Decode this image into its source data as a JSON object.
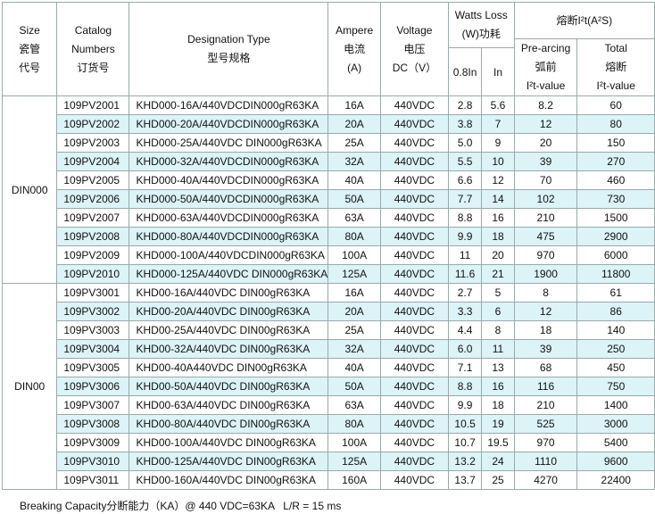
{
  "header": {
    "size": [
      "Size",
      "瓷管",
      "代号"
    ],
    "catalog": [
      "Catalog",
      "Numbers",
      "订货号"
    ],
    "designation": [
      "Designation Type",
      "型号规格"
    ],
    "ampere": [
      "Ampere",
      "电流",
      "(A)"
    ],
    "voltage": [
      "Voltage",
      "电压",
      "DC（V）"
    ],
    "watts": [
      "Watts Loss",
      "(W)功耗"
    ],
    "watts_sub": [
      "0.8In",
      "In"
    ],
    "i2t": "熔断I²t(A²S)",
    "pre": [
      "Pre-arcing",
      "弧前",
      "I²t-value"
    ],
    "total": [
      "Total",
      "熔断",
      "I²t-value"
    ]
  },
  "groups": [
    {
      "size": "DIN000",
      "rows": [
        [
          "109PV2001",
          "KHD000-16A/440VDCDIN000gR63KA",
          "16A",
          "440VDC",
          "2.8",
          "5.6",
          "8.2",
          "60"
        ],
        [
          "109PV2002",
          "KHD000-20A/440VDCDIN000gR63KA",
          "20A",
          "440VDC",
          "3.8",
          "7",
          "12",
          "80"
        ],
        [
          "109PV2003",
          "KHD000-25A/440VDC DIN000gR63KA",
          "25A",
          "440VDC",
          "5.0",
          "9",
          "20",
          "150"
        ],
        [
          "109PV2004",
          "KHD000-32A/440VDCDIN000gR63KA",
          "32A",
          "440VDC",
          "5.5",
          "10",
          "39",
          "270"
        ],
        [
          "109PV2005",
          "KHD000-40A/440VDCDIN000gR63KA",
          "40A",
          "440VDC",
          "6.6",
          "12",
          "70",
          "460"
        ],
        [
          "109PV2006",
          "KHD000-50A/440VDCDIN000gR63KA",
          "50A",
          "440VDC",
          "7.7",
          "14",
          "102",
          "730"
        ],
        [
          "109PV2007",
          "KHD000-63A/440VDCDIN000gR63KA",
          "63A",
          "440VDC",
          "8.8",
          "16",
          "210",
          "1500"
        ],
        [
          "109PV2008",
          "KHD000-80A/440VDCDIN000gR63KA",
          "80A",
          "440VDC",
          "9.9",
          "18",
          "475",
          "2900"
        ],
        [
          "109PV2009",
          "KHD000-100A/440VDCDIN000gR63KA",
          "100A",
          "440VDC",
          "11",
          "20",
          "970",
          "6000"
        ],
        [
          "109PV2010",
          "KHD000-125A/440VDC DIN000gR63KA",
          "125A",
          "440VDC",
          "11.6",
          "21",
          "1900",
          "11800"
        ]
      ]
    },
    {
      "size": "DIN00",
      "rows": [
        [
          "109PV3001",
          "KHD00-16A/440VDC DIN00gR63KA",
          "16A",
          "440VDC",
          "2.7",
          "5",
          "8",
          "61"
        ],
        [
          "109PV3002",
          "KHD00-20A/440VDC DIN00gR63KA",
          "20A",
          "440VDC",
          "3.3",
          "6",
          "12",
          "86"
        ],
        [
          "109PV3003",
          "KHD00-25A/440VDC DIN00gR63KA",
          "25A",
          "440VDC",
          "4.4",
          "8",
          "18",
          "140"
        ],
        [
          "109PV3004",
          "KHD00-32A/440VDC DIN00gR63KA",
          "32A",
          "440VDC",
          "6.0",
          "11",
          "39",
          "250"
        ],
        [
          "109PV3005",
          "KHD00-40A440VDC DIN00gR63KA",
          "40A",
          "440VDC",
          "7.1",
          "13",
          "68",
          "450"
        ],
        [
          "109PV3006",
          "KHD00-50A/440VDC DIN00gR63KA",
          "50A",
          "440VDC",
          "8.8",
          "16",
          "116",
          "750"
        ],
        [
          "109PV3007",
          "KHD00-63A/440VDC DIN00gR63KA",
          "63A",
          "440VDC",
          "9.9",
          "18",
          "210",
          "1400"
        ],
        [
          "109PV3008",
          "KHD00-80A/440VDC DIN00gR63KA",
          "80A",
          "440VDC",
          "10.5",
          "19",
          "525",
          "3000"
        ],
        [
          "109PV3009",
          "KHD00-100A/440VDC DIN00gR63KA",
          "100A",
          "440VDC",
          "10.7",
          "19.5",
          "970",
          "5400"
        ],
        [
          "109PV3010",
          "KHD00-125A/440VDC DIN00gR63KA",
          "125A",
          "440VDC",
          "13.2",
          "24",
          "1110",
          "9600"
        ],
        [
          "109PV3011",
          "KHD00-160A/440VDC DIN00gR63KA",
          "160A",
          "440VDC",
          "13.7",
          "25",
          "4270",
          "22400"
        ]
      ]
    }
  ],
  "footer": "Breaking Capacity分断能力（KA）@ 440 VDC=63KA   L/R = 15 ms"
}
